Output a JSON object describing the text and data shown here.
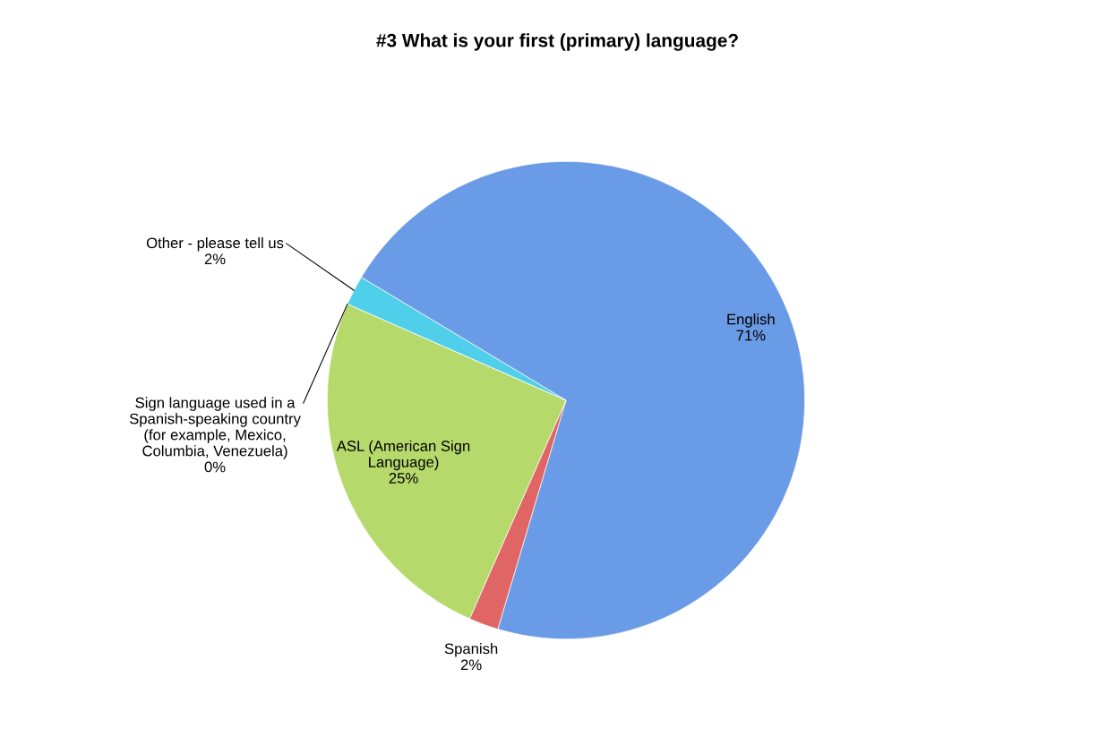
{
  "chart_data": {
    "type": "pie",
    "title": "#3 What is your first (primary) language?",
    "categories": [
      "English",
      "Spanish",
      "ASL (American Sign\nLanguage)",
      "Sign language used in a\nSpanish-speaking country\n(for example, Mexico,\nColumbia, Venezuela)",
      "Other - please tell us"
    ],
    "values": [
      71,
      2,
      25,
      0,
      2
    ],
    "value_labels": [
      "71%",
      "2%",
      "25%",
      "0%",
      "2%"
    ],
    "colors": [
      "#6a9be6",
      "#e06666",
      "#b6d96c",
      "#a98fd0",
      "#4fcfe9"
    ]
  }
}
